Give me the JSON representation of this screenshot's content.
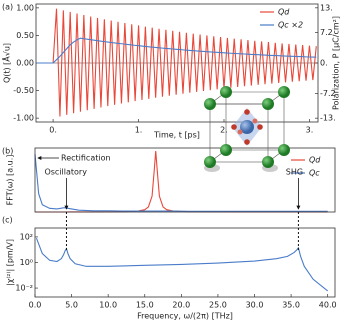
{
  "chart_data": [
    {
      "type": "line",
      "panel_label": "(a)",
      "xlabel": "Time, t [ps]",
      "ylabel": "Q(t) [Å√u]",
      "y2label": "Polarization, P [μC/cm²]",
      "xlim": [
        -0.2,
        3.1
      ],
      "xticks": [
        {
          "value": 0,
          "label": "0."
        },
        {
          "value": 1,
          "label": "1."
        },
        {
          "value": 2,
          "label": "2."
        },
        {
          "value": 3,
          "label": "3."
        }
      ],
      "ylim": [
        -1.07,
        1.07
      ],
      "yticks": [
        {
          "value": -1,
          "label": "-1.00"
        },
        {
          "value": -0.5,
          "label": "-0.50"
        },
        {
          "value": 0,
          "label": "0.00"
        },
        {
          "value": 0.5,
          "label": "0.50"
        },
        {
          "value": 1,
          "label": "1.00"
        }
      ],
      "y2lim": [
        -13.9,
        13.9
      ],
      "y2ticks": [
        {
          "value": -13,
          "label": "-13."
        },
        -7.2,
        {
          "value": 0,
          "label": "0."
        },
        7.2,
        {
          "value": 13,
          "label": "13."
        }
      ],
      "zero_line": true,
      "legend": "upper right",
      "x": [
        -0.2,
        0,
        0.04,
        0.08,
        0.12,
        0.16,
        0.2,
        0.24,
        0.28,
        0.32,
        0.36,
        0.4,
        0.44,
        0.48,
        0.52,
        0.56,
        0.6,
        0.64,
        0.68,
        0.72,
        0.76,
        0.8,
        0.84,
        0.88,
        0.92,
        0.96,
        1,
        1.04,
        1.08,
        1.12,
        1.16,
        1.2,
        1.24,
        1.28,
        1.32,
        1.36,
        1.4,
        1.44,
        1.48,
        1.52,
        1.56,
        1.6,
        1.64,
        1.68,
        1.72,
        1.76,
        1.8,
        1.84,
        1.88,
        1.92,
        1.96,
        2,
        2.04,
        2.08,
        2.12,
        2.16,
        2.2,
        2.24,
        2.28,
        2.32,
        2.36,
        2.4,
        2.44,
        2.48,
        2.52,
        2.56,
        2.6,
        2.64,
        2.68,
        2.72,
        2.76,
        2.8,
        2.84,
        2.88,
        2.92,
        2.96,
        3,
        3.04,
        3.08
      ],
      "series": [
        {
          "name": "Qd",
          "color": "#e8483a",
          "values": [
            0,
            0,
            0.985,
            -0.97,
            0.955,
            -0.94,
            0.926,
            -0.912,
            0.898,
            -0.884,
            0.871,
            -0.857,
            0.844,
            -0.831,
            0.819,
            -0.806,
            0.794,
            -0.782,
            0.77,
            -0.758,
            0.747,
            -0.735,
            0.724,
            -0.713,
            0.702,
            -0.691,
            0.681,
            -0.67,
            0.66,
            -0.65,
            0.64,
            -0.63,
            0.621,
            -0.611,
            0.602,
            -0.593,
            0.584,
            -0.575,
            0.566,
            -0.557,
            0.549,
            -0.54,
            0.532,
            -0.524,
            0.516,
            -0.508,
            0.5,
            -0.493,
            0.485,
            -0.478,
            0.47,
            -0.463,
            0.456,
            -0.449,
            0.442,
            -0.435,
            0.429,
            -0.422,
            0.416,
            -0.409,
            0.403,
            -0.397,
            0.391,
            -0.385,
            0.379,
            -0.373,
            0.367,
            -0.362,
            0.356,
            -0.351,
            0.345,
            -0.34,
            0.335,
            -0.33,
            0.325,
            -0.32,
            0.315,
            -0.31,
            0.305
          ]
        },
        {
          "name": "Qc ×2",
          "color": "#4a7cc9",
          "values": [
            0,
            0,
            0.06,
            0.12,
            0.19,
            0.26,
            0.33,
            0.38,
            0.42,
            0.45,
            0.44,
            0.431,
            0.422,
            0.413,
            0.405,
            0.396,
            0.388,
            0.38,
            0.372,
            0.364,
            0.356,
            0.349,
            0.342,
            0.334,
            0.327,
            0.32,
            0.314,
            0.307,
            0.301,
            0.294,
            0.288,
            0.282,
            0.276,
            0.27,
            0.265,
            0.259,
            0.254,
            0.248,
            0.243,
            0.238,
            0.233,
            0.228,
            0.223,
            0.219,
            0.214,
            0.21,
            0.205,
            0.201,
            0.197,
            0.193,
            0.189,
            0.185,
            0.181,
            0.177,
            0.173,
            0.17,
            0.166,
            0.163,
            0.159,
            0.156,
            0.153,
            0.15,
            0.146,
            0.143,
            0.14,
            0.137,
            0.135,
            0.132,
            0.129,
            0.126,
            0.124,
            0.121,
            0.119,
            0.116,
            0.114,
            0.111,
            0.109,
            0.107,
            0.105
          ]
        }
      ]
    },
    {
      "type": "line",
      "panel_label": "(b)",
      "ylabel": "FFT(ω) [a.u.]",
      "xlim": [
        0,
        41
      ],
      "ylim": [
        0,
        1.05
      ],
      "legend": "upper right",
      "x": [
        0,
        0.5,
        1,
        2,
        3,
        4,
        5,
        6,
        8,
        10,
        12,
        14,
        15,
        15.5,
        16,
        16.3,
        16.5,
        16.7,
        17,
        17.5,
        18,
        19,
        21,
        24,
        28,
        32,
        36,
        40
      ],
      "series": [
        {
          "name": "Qd",
          "color": "#e8483a",
          "values": [
            0,
            0,
            0,
            0,
            0,
            0,
            0.001,
            0.001,
            0.001,
            0.002,
            0.004,
            0.014,
            0.038,
            0.083,
            0.26,
            0.69,
            1,
            0.69,
            0.26,
            0.083,
            0.038,
            0.014,
            0.004,
            0.002,
            0.001,
            0.001,
            0.001,
            0.001
          ]
        },
        {
          "name": "Qc",
          "color": "#4a7cc9",
          "values": [
            0.95,
            0.3,
            0.12,
            0.06,
            0.05,
            0.07,
            0.05,
            0.03,
            0.02,
            0.02,
            0.015,
            0.015,
            0.015,
            0.015,
            0.015,
            0.015,
            0.015,
            0.015,
            0.015,
            0.015,
            0.015,
            0.015,
            0.012,
            0.012,
            0.012,
            0.012,
            0.012,
            0.012
          ]
        }
      ],
      "annotations": [
        {
          "text": "Rectification",
          "x": 0
        },
        {
          "text": "Oscillatory",
          "x": 4.3
        },
        {
          "text": "SHG",
          "x": 36
        }
      ]
    },
    {
      "type": "line",
      "panel_label": "(c)",
      "xlabel": "Frequency, ω/(2π) [THz]",
      "ylabel": "|χ⁽²⁾| [pm/V]",
      "log_y": true,
      "xlim": [
        0,
        41
      ],
      "xticks": [
        {
          "value": 0,
          "label": "0.0"
        },
        {
          "value": 5,
          "label": "5.0"
        },
        {
          "value": 10,
          "label": "10.0"
        },
        {
          "value": 15,
          "label": "15.0"
        },
        {
          "value": 20,
          "label": "20.0"
        },
        {
          "value": 25,
          "label": "25.0"
        },
        {
          "value": 30,
          "label": "30.0"
        },
        {
          "value": 35,
          "label": "35.0"
        },
        {
          "value": 40,
          "label": "40.0"
        }
      ],
      "ylim": [
        0.002,
        500
      ],
      "yticks": [
        {
          "value": 100,
          "label": "10²"
        },
        {
          "value": 1,
          "label": "10⁰"
        },
        {
          "value": 0.01,
          "label": "10⁻²"
        }
      ],
      "vlines": [
        4.3,
        36
      ],
      "x": [
        0.2,
        1,
        2,
        3,
        3.6,
        3.9,
        4.1,
        4.3,
        4.5,
        4.8,
        5.5,
        7,
        10,
        15,
        20,
        25,
        30,
        33,
        34.5,
        35.4,
        35.8,
        36,
        36.3,
        36.8,
        38,
        40
      ],
      "series": [
        {
          "color": "#4a7cc9",
          "values": [
            80,
            5,
            1.5,
            1.2,
            2,
            4,
            8,
            12,
            5,
            2,
            0.8,
            0.5,
            0.5,
            0.6,
            0.7,
            0.9,
            1.3,
            2,
            3,
            6,
            10,
            14,
            3,
            0.5,
            0.05,
            0.006
          ]
        }
      ]
    }
  ]
}
